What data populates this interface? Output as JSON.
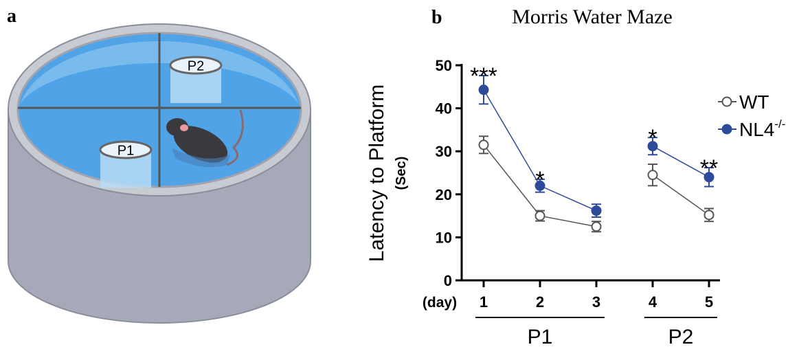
{
  "panel_a": {
    "label": "a",
    "platform_labels": [
      "P1",
      "P2"
    ]
  },
  "chart_data": {
    "type": "line",
    "panel_label": "b",
    "title": "Morris Water Maze",
    "y_label": "Latency to Platform",
    "y_unit": "(Sec)",
    "x_label": "(day)",
    "categories": [
      "1",
      "2",
      "3",
      "4",
      "5"
    ],
    "groups": [
      {
        "label": "P1",
        "span": [
          0,
          2
        ]
      },
      {
        "label": "P2",
        "span": [
          3,
          4
        ]
      }
    ],
    "series": [
      {
        "name": "WT",
        "color": "#555555",
        "marker": "open",
        "values": [
          31.5,
          15,
          12.5,
          24.5,
          15.2
        ],
        "errors": [
          2,
          1.2,
          1.2,
          2.5,
          1.5
        ]
      },
      {
        "name": "NL4",
        "name_sup": "-/-",
        "color": "#2e4a9a",
        "marker": "filled",
        "values": [
          44.3,
          22,
          16.2,
          31.2,
          24
        ],
        "errors": [
          3.3,
          1.5,
          1.5,
          2,
          2.2
        ]
      }
    ],
    "significance": [
      "***",
      "*",
      null,
      "*",
      "**"
    ],
    "ylim": [
      0,
      50
    ],
    "yticks": [
      0,
      10,
      20,
      30,
      40,
      50
    ]
  }
}
